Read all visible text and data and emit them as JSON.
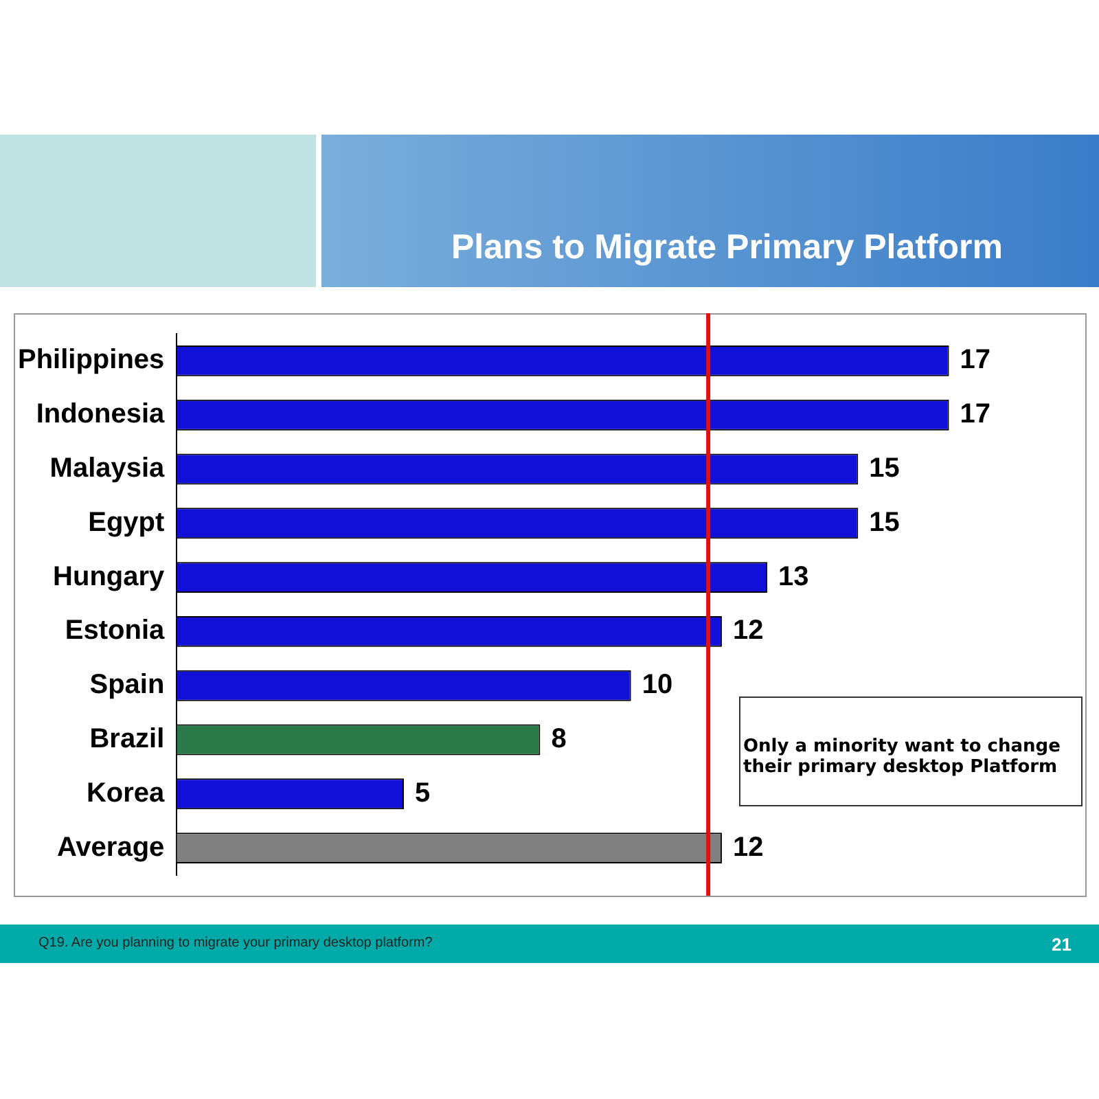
{
  "chart_data": {
    "type": "bar",
    "orientation": "horizontal",
    "title": "Plans to Migrate Primary Platform",
    "categories": [
      "Philippines",
      "Indonesia",
      "Malaysia",
      "Egypt",
      "Hungary",
      "Estonia",
      "Spain",
      "Brazil",
      "Korea",
      "Average"
    ],
    "values": [
      17,
      17,
      15,
      15,
      13,
      12,
      10,
      8,
      5,
      12
    ],
    "colors": [
      "#1010d8",
      "#1010d8",
      "#1010d8",
      "#1010d8",
      "#1010d8",
      "#1010d8",
      "#1010d8",
      "#2a7a4a",
      "#1010d8",
      "#808080"
    ],
    "xlim": [
      0,
      20
    ],
    "tick_labels": "y",
    "data_labels": true,
    "legend": false,
    "grid": false,
    "ref_lines": [
      {
        "axis": "x",
        "value": 11.7,
        "color": "#e01010"
      }
    ],
    "annotations": [
      "Only a minority want to change their primary desktop Platform",
      "Q19. Are you planning to migrate your primary desktop platform?",
      "21"
    ]
  }
}
